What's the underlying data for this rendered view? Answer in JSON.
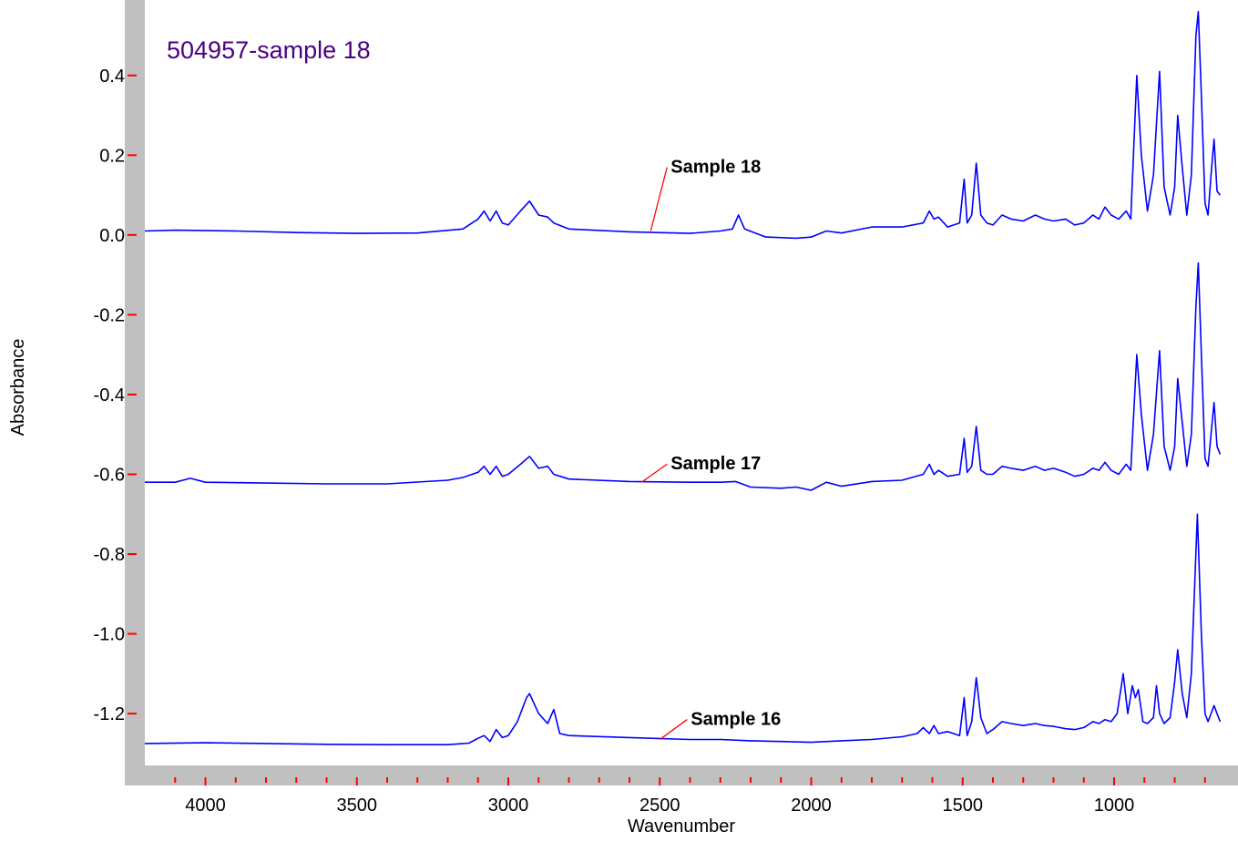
{
  "chart_data": {
    "type": "line",
    "title": "504957-sample 18",
    "xlabel": "Wavenumber",
    "ylabel": "Absorbance",
    "xlim": [
      4200,
      600
    ],
    "ylim": [
      -1.33,
      0.58
    ],
    "x_reversed": true,
    "grid": false,
    "xticks": [
      {
        "value": 4000,
        "label": "4000"
      },
      {
        "value": 3500,
        "label": "3500"
      },
      {
        "value": 3000,
        "label": "3000"
      },
      {
        "value": 2500,
        "label": "2500"
      },
      {
        "value": 2000,
        "label": "2000"
      },
      {
        "value": 1500,
        "label": "1500"
      },
      {
        "value": 1000,
        "label": "1000"
      }
    ],
    "yticks": [
      {
        "value": 0.4,
        "label": "0.4"
      },
      {
        "value": 0.2,
        "label": "0.2"
      },
      {
        "value": 0.0,
        "label": "0.0"
      },
      {
        "value": -0.2,
        "label": "-0.2"
      },
      {
        "value": -0.4,
        "label": "-0.4"
      },
      {
        "value": -0.6,
        "label": "-0.6"
      },
      {
        "value": -0.8,
        "label": "-0.8"
      },
      {
        "value": -1.0,
        "label": "-1.0"
      },
      {
        "value": -1.2,
        "label": "-1.2"
      }
    ],
    "series": [
      {
        "name": "Sample 18",
        "points": [
          [
            4200,
            0.01
          ],
          [
            4100,
            0.012
          ],
          [
            3900,
            0.01
          ],
          [
            3700,
            0.006
          ],
          [
            3500,
            0.004
          ],
          [
            3300,
            0.005
          ],
          [
            3150,
            0.015
          ],
          [
            3100,
            0.04
          ],
          [
            3080,
            0.06
          ],
          [
            3060,
            0.035
          ],
          [
            3040,
            0.06
          ],
          [
            3020,
            0.03
          ],
          [
            3000,
            0.025
          ],
          [
            2960,
            0.06
          ],
          [
            2930,
            0.085
          ],
          [
            2900,
            0.05
          ],
          [
            2870,
            0.045
          ],
          [
            2850,
            0.03
          ],
          [
            2800,
            0.015
          ],
          [
            2600,
            0.008
          ],
          [
            2400,
            0.004
          ],
          [
            2300,
            0.01
          ],
          [
            2260,
            0.015
          ],
          [
            2240,
            0.05
          ],
          [
            2220,
            0.015
          ],
          [
            2150,
            -0.005
          ],
          [
            2050,
            -0.008
          ],
          [
            2000,
            -0.005
          ],
          [
            1950,
            0.01
          ],
          [
            1900,
            0.005
          ],
          [
            1800,
            0.02
          ],
          [
            1700,
            0.02
          ],
          [
            1630,
            0.03
          ],
          [
            1610,
            0.06
          ],
          [
            1595,
            0.04
          ],
          [
            1580,
            0.045
          ],
          [
            1550,
            0.02
          ],
          [
            1510,
            0.03
          ],
          [
            1495,
            0.14
          ],
          [
            1485,
            0.03
          ],
          [
            1470,
            0.05
          ],
          [
            1455,
            0.18
          ],
          [
            1440,
            0.05
          ],
          [
            1420,
            0.03
          ],
          [
            1400,
            0.025
          ],
          [
            1370,
            0.05
          ],
          [
            1340,
            0.04
          ],
          [
            1300,
            0.035
          ],
          [
            1260,
            0.05
          ],
          [
            1230,
            0.04
          ],
          [
            1200,
            0.035
          ],
          [
            1160,
            0.04
          ],
          [
            1130,
            0.025
          ],
          [
            1100,
            0.03
          ],
          [
            1070,
            0.05
          ],
          [
            1050,
            0.04
          ],
          [
            1030,
            0.07
          ],
          [
            1010,
            0.05
          ],
          [
            985,
            0.04
          ],
          [
            960,
            0.06
          ],
          [
            945,
            0.04
          ],
          [
            925,
            0.4
          ],
          [
            910,
            0.2
          ],
          [
            890,
            0.06
          ],
          [
            870,
            0.15
          ],
          [
            850,
            0.41
          ],
          [
            835,
            0.12
          ],
          [
            815,
            0.05
          ],
          [
            800,
            0.12
          ],
          [
            790,
            0.3
          ],
          [
            775,
            0.17
          ],
          [
            760,
            0.05
          ],
          [
            745,
            0.15
          ],
          [
            730,
            0.5
          ],
          [
            722,
            0.56
          ],
          [
            712,
            0.35
          ],
          [
            700,
            0.08
          ],
          [
            690,
            0.05
          ],
          [
            680,
            0.15
          ],
          [
            670,
            0.24
          ],
          [
            660,
            0.11
          ],
          [
            650,
            0.1
          ]
        ],
        "annotation": {
          "text": "Sample 18",
          "anchor": [
            2530,
            0.01
          ],
          "offset": [
            18,
            -70
          ]
        }
      },
      {
        "name": "Sample 17",
        "points": [
          [
            4200,
            -0.62
          ],
          [
            4100,
            -0.62
          ],
          [
            4050,
            -0.61
          ],
          [
            4000,
            -0.62
          ],
          [
            3800,
            -0.622
          ],
          [
            3600,
            -0.624
          ],
          [
            3400,
            -0.624
          ],
          [
            3200,
            -0.615
          ],
          [
            3150,
            -0.608
          ],
          [
            3100,
            -0.595
          ],
          [
            3080,
            -0.58
          ],
          [
            3060,
            -0.6
          ],
          [
            3040,
            -0.58
          ],
          [
            3020,
            -0.605
          ],
          [
            3000,
            -0.6
          ],
          [
            2960,
            -0.575
          ],
          [
            2930,
            -0.555
          ],
          [
            2900,
            -0.585
          ],
          [
            2870,
            -0.58
          ],
          [
            2850,
            -0.6
          ],
          [
            2800,
            -0.612
          ],
          [
            2600,
            -0.618
          ],
          [
            2400,
            -0.62
          ],
          [
            2300,
            -0.62
          ],
          [
            2250,
            -0.618
          ],
          [
            2200,
            -0.632
          ],
          [
            2100,
            -0.635
          ],
          [
            2050,
            -0.632
          ],
          [
            2000,
            -0.64
          ],
          [
            1950,
            -0.62
          ],
          [
            1900,
            -0.63
          ],
          [
            1800,
            -0.618
          ],
          [
            1700,
            -0.615
          ],
          [
            1630,
            -0.6
          ],
          [
            1610,
            -0.575
          ],
          [
            1595,
            -0.6
          ],
          [
            1580,
            -0.59
          ],
          [
            1550,
            -0.605
          ],
          [
            1510,
            -0.6
          ],
          [
            1495,
            -0.51
          ],
          [
            1485,
            -0.595
          ],
          [
            1470,
            -0.58
          ],
          [
            1455,
            -0.48
          ],
          [
            1440,
            -0.59
          ],
          [
            1420,
            -0.6
          ],
          [
            1400,
            -0.6
          ],
          [
            1370,
            -0.58
          ],
          [
            1340,
            -0.585
          ],
          [
            1300,
            -0.59
          ],
          [
            1260,
            -0.58
          ],
          [
            1230,
            -0.59
          ],
          [
            1200,
            -0.585
          ],
          [
            1160,
            -0.595
          ],
          [
            1130,
            -0.605
          ],
          [
            1100,
            -0.6
          ],
          [
            1070,
            -0.585
          ],
          [
            1050,
            -0.59
          ],
          [
            1030,
            -0.57
          ],
          [
            1010,
            -0.59
          ],
          [
            985,
            -0.6
          ],
          [
            960,
            -0.575
          ],
          [
            945,
            -0.59
          ],
          [
            925,
            -0.3
          ],
          [
            910,
            -0.45
          ],
          [
            890,
            -0.59
          ],
          [
            870,
            -0.5
          ],
          [
            850,
            -0.29
          ],
          [
            835,
            -0.53
          ],
          [
            815,
            -0.59
          ],
          [
            800,
            -0.53
          ],
          [
            790,
            -0.36
          ],
          [
            775,
            -0.47
          ],
          [
            760,
            -0.58
          ],
          [
            745,
            -0.5
          ],
          [
            730,
            -0.18
          ],
          [
            722,
            -0.07
          ],
          [
            712,
            -0.3
          ],
          [
            700,
            -0.56
          ],
          [
            690,
            -0.58
          ],
          [
            680,
            -0.5
          ],
          [
            670,
            -0.42
          ],
          [
            660,
            -0.53
          ],
          [
            650,
            -0.55
          ]
        ],
        "annotation": {
          "text": "Sample 17",
          "anchor": [
            2560,
            -0.62
          ],
          "offset": [
            28,
            -20
          ]
        }
      },
      {
        "name": "Sample 16",
        "points": [
          [
            4200,
            -1.275
          ],
          [
            4000,
            -1.273
          ],
          [
            3800,
            -1.275
          ],
          [
            3600,
            -1.277
          ],
          [
            3400,
            -1.278
          ],
          [
            3200,
            -1.278
          ],
          [
            3130,
            -1.274
          ],
          [
            3100,
            -1.262
          ],
          [
            3080,
            -1.255
          ],
          [
            3060,
            -1.27
          ],
          [
            3040,
            -1.24
          ],
          [
            3020,
            -1.26
          ],
          [
            3000,
            -1.255
          ],
          [
            2970,
            -1.22
          ],
          [
            2940,
            -1.16
          ],
          [
            2930,
            -1.15
          ],
          [
            2900,
            -1.2
          ],
          [
            2870,
            -1.225
          ],
          [
            2850,
            -1.19
          ],
          [
            2830,
            -1.25
          ],
          [
            2800,
            -1.255
          ],
          [
            2600,
            -1.26
          ],
          [
            2400,
            -1.265
          ],
          [
            2300,
            -1.265
          ],
          [
            2200,
            -1.268
          ],
          [
            2100,
            -1.27
          ],
          [
            2000,
            -1.272
          ],
          [
            1900,
            -1.268
          ],
          [
            1800,
            -1.265
          ],
          [
            1700,
            -1.258
          ],
          [
            1650,
            -1.25
          ],
          [
            1630,
            -1.235
          ],
          [
            1610,
            -1.25
          ],
          [
            1595,
            -1.23
          ],
          [
            1580,
            -1.25
          ],
          [
            1550,
            -1.245
          ],
          [
            1510,
            -1.255
          ],
          [
            1495,
            -1.16
          ],
          [
            1485,
            -1.255
          ],
          [
            1470,
            -1.22
          ],
          [
            1455,
            -1.11
          ],
          [
            1440,
            -1.21
          ],
          [
            1420,
            -1.25
          ],
          [
            1400,
            -1.24
          ],
          [
            1370,
            -1.22
          ],
          [
            1340,
            -1.225
          ],
          [
            1300,
            -1.23
          ],
          [
            1260,
            -1.225
          ],
          [
            1230,
            -1.23
          ],
          [
            1200,
            -1.232
          ],
          [
            1160,
            -1.238
          ],
          [
            1130,
            -1.24
          ],
          [
            1100,
            -1.235
          ],
          [
            1070,
            -1.22
          ],
          [
            1050,
            -1.225
          ],
          [
            1030,
            -1.215
          ],
          [
            1010,
            -1.22
          ],
          [
            990,
            -1.2
          ],
          [
            970,
            -1.1
          ],
          [
            955,
            -1.2
          ],
          [
            940,
            -1.13
          ],
          [
            930,
            -1.16
          ],
          [
            920,
            -1.14
          ],
          [
            905,
            -1.22
          ],
          [
            890,
            -1.225
          ],
          [
            870,
            -1.21
          ],
          [
            860,
            -1.13
          ],
          [
            850,
            -1.2
          ],
          [
            835,
            -1.225
          ],
          [
            815,
            -1.21
          ],
          [
            800,
            -1.12
          ],
          [
            790,
            -1.04
          ],
          [
            775,
            -1.15
          ],
          [
            760,
            -1.21
          ],
          [
            745,
            -1.1
          ],
          [
            735,
            -0.9
          ],
          [
            725,
            -0.7
          ],
          [
            712,
            -1.0
          ],
          [
            700,
            -1.2
          ],
          [
            690,
            -1.22
          ],
          [
            680,
            -1.2
          ],
          [
            670,
            -1.18
          ],
          [
            660,
            -1.2
          ],
          [
            650,
            -1.22
          ]
        ],
        "annotation": {
          "text": "Sample 16",
          "anchor": [
            2500,
            -1.265
          ],
          "offset": [
            30,
            -22
          ]
        }
      }
    ],
    "colors": {
      "series": "#0000ff",
      "title": "#4b0082",
      "tick_marks": "#ff0000",
      "axis_band": "#c0c0c0",
      "leader_line": "#ff0000"
    }
  }
}
